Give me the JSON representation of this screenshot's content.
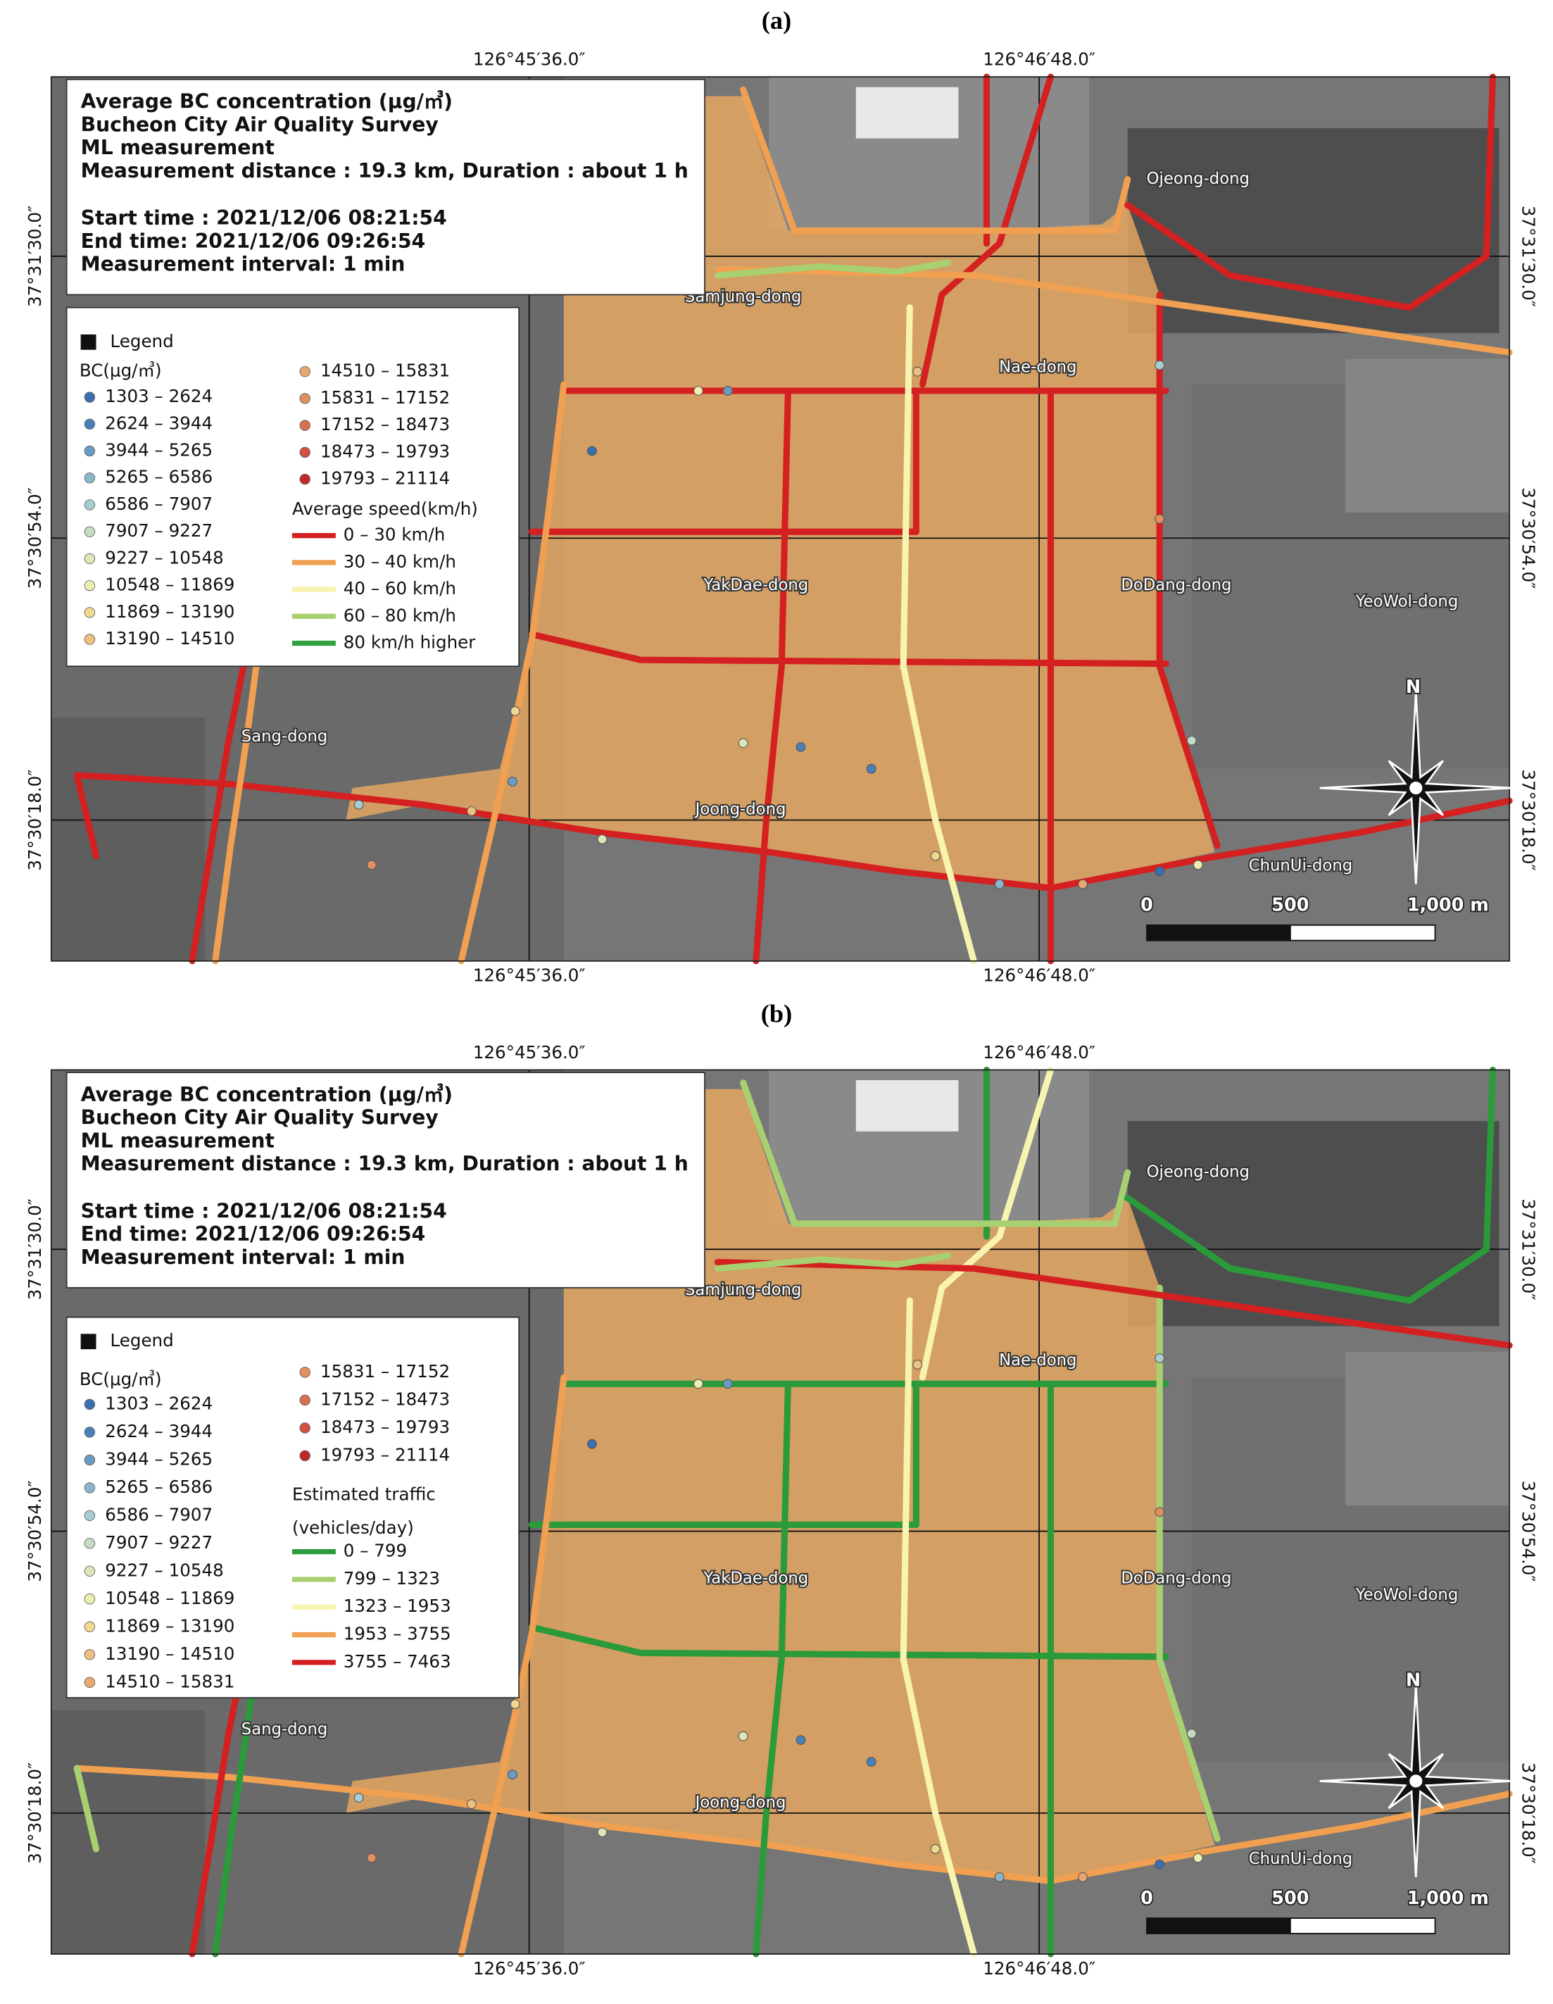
{
  "panels": [
    {
      "label": "(a)",
      "legend": {
        "title": "Legend",
        "bc_title": "BC(μg/㎥)",
        "bc_classes": [
          {
            "label": "1303 – 2624",
            "color": "#3a6fb0"
          },
          {
            "label": "2624 – 3944",
            "color": "#4a80b8"
          },
          {
            "label": "3944 – 5265",
            "color": "#6a9ac4"
          },
          {
            "label": "5265 – 6586",
            "color": "#8ab6cc"
          },
          {
            "label": "6586 – 7907",
            "color": "#a8cdd0"
          },
          {
            "label": "7907 – 9227",
            "color": "#c4dcc4"
          },
          {
            "label": "9227 – 10548",
            "color": "#dde6b8"
          },
          {
            "label": "10548 – 11869",
            "color": "#eeeeb0"
          },
          {
            "label": "11869 – 13190",
            "color": "#f0d890"
          },
          {
            "label": "13190 – 14510",
            "color": "#eec080"
          },
          {
            "label": "14510 – 15831",
            "color": "#e8a870"
          },
          {
            "label": "15831 – 17152",
            "color": "#e09060"
          },
          {
            "label": "17152 – 18473",
            "color": "#d87050"
          },
          {
            "label": "18473 – 19793",
            "color": "#d05040"
          },
          {
            "label": "19793 – 21114",
            "color": "#c02828"
          }
        ],
        "line_title": [
          "Average speed(km/h)"
        ],
        "line_classes": [
          {
            "label": "0 – 30 km/h",
            "color": "#d42020"
          },
          {
            "label": "30 – 40 km/h",
            "color": "#f0a050"
          },
          {
            "label": "40 – 60 km/h",
            "color": "#f8f4b0"
          },
          {
            "label": "60 – 80 km/h",
            "color": "#a8d070"
          },
          {
            "label": "80 km/h higher",
            "color": "#30a040"
          }
        ]
      }
    },
    {
      "label": "(b)",
      "legend": {
        "title": "Legend",
        "bc_title": "BC(μg/㎥)",
        "bc_classes": [
          {
            "label": "1303 – 2624",
            "color": "#3a6fb0"
          },
          {
            "label": "2624 – 3944",
            "color": "#4a80b8"
          },
          {
            "label": "3944 – 5265",
            "color": "#6a9ac4"
          },
          {
            "label": "5265 – 6586",
            "color": "#8ab6cc"
          },
          {
            "label": "6586 – 7907",
            "color": "#a8cdd0"
          },
          {
            "label": "7907 – 9227",
            "color": "#c4dcc4"
          },
          {
            "label": "9227 – 10548",
            "color": "#dde6b8"
          },
          {
            "label": "10548 – 11869",
            "color": "#eeeeb0"
          },
          {
            "label": "11869 – 13190",
            "color": "#f0d890"
          },
          {
            "label": "13190 – 14510",
            "color": "#eec080"
          },
          {
            "label": "14510 – 15831",
            "color": "#e8a870"
          },
          {
            "label": "15831 – 17152",
            "color": "#e09060"
          },
          {
            "label": "17152 – 18473",
            "color": "#d87050"
          },
          {
            "label": "18473 – 19793",
            "color": "#d05040"
          },
          {
            "label": "19793 – 21114",
            "color": "#c02828"
          }
        ],
        "line_title": [
          "Estimated traffic",
          "(vehicles/day)"
        ],
        "line_classes": [
          {
            "label": "0 – 799",
            "color": "#2a9a3a"
          },
          {
            "label": "799 – 1323",
            "color": "#a8d070"
          },
          {
            "label": "1323 – 1953",
            "color": "#f8f4b0"
          },
          {
            "label": "1953 – 3755",
            "color": "#f0a050"
          },
          {
            "label": "3755 – 7463",
            "color": "#d42020"
          }
        ]
      }
    }
  ],
  "map": {
    "info_lines": [
      "Average BC concentration (μg/㎥)",
      "Bucheon City Air Quality Survey",
      "ML measurement",
      "Measurement distance : 19.3 km, Duration : about 1 h",
      "Start time : 2021/12/06 08:21:54",
      "End time: 2021/12/06 09:26:54",
      "Measurement interval: 1 min"
    ],
    "longitudes": [
      "126°45′36.0″",
      "126°46′48.0″"
    ],
    "latitudes": [
      "37°31′30.0″",
      "37°30′54.0″",
      "37°30′18.0″"
    ],
    "places": [
      "Ojeong-dong",
      "Samjung-dong",
      "Nae-dong",
      "YakDae-dong",
      "DoDang-dong",
      "YeoWol-dong",
      "Sang-dong",
      "Joong-dong",
      "ChunUi-dong"
    ],
    "scale_labels": [
      "0",
      "500",
      "1,000 m"
    ],
    "north": "N"
  }
}
